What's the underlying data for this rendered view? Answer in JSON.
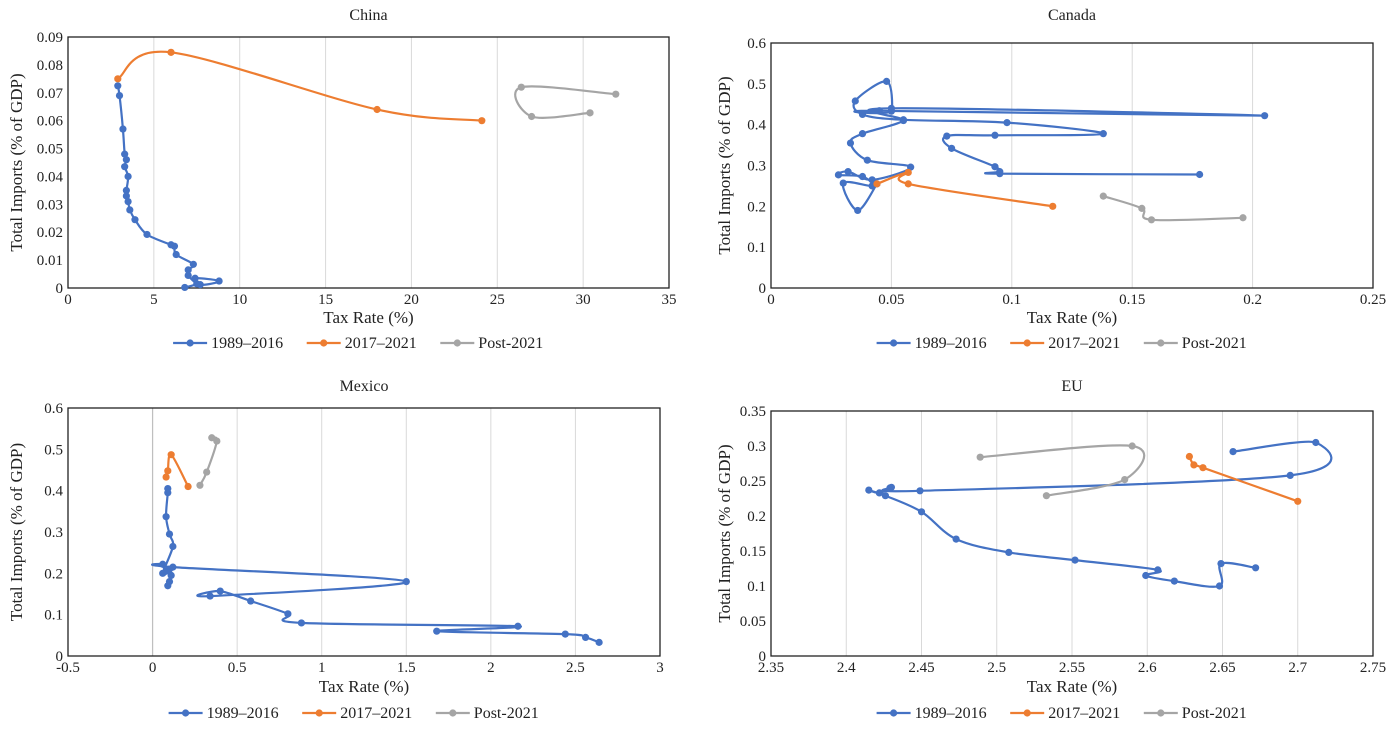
{
  "chart_data": [
    {
      "type": "line",
      "title": "China",
      "xlabel": "Tax Rate (%)",
      "ylabel": "Total Imports (% of GDP)",
      "xlim": [
        0,
        35
      ],
      "ylim": [
        0,
        0.09
      ],
      "xticks": [
        "0",
        "5",
        "10",
        "15",
        "20",
        "25",
        "30",
        "35"
      ],
      "yticks": [
        "0",
        "0.01",
        "0.02",
        "0.03",
        "0.04",
        "0.05",
        "0.06",
        "0.07",
        "0.08",
        "0.09"
      ],
      "grid": "vertical",
      "legend": "bottom",
      "series": [
        {
          "name": "1989–2016",
          "color": "#4472c4",
          "points": [
            [
              6.8,
              0.0002
            ],
            [
              7.5,
              0.0015
            ],
            [
              7.4,
              0.0035
            ],
            [
              8.8,
              0.0025
            ],
            [
              7.7,
              0.0012
            ],
            [
              7.0,
              0.0045
            ],
            [
              7.0,
              0.0065
            ],
            [
              7.3,
              0.0085
            ],
            [
              6.3,
              0.012
            ],
            [
              6.2,
              0.015
            ],
            [
              6.0,
              0.0155
            ],
            [
              4.6,
              0.0192
            ],
            [
              3.9,
              0.0245
            ],
            [
              3.6,
              0.028
            ],
            [
              3.5,
              0.031
            ],
            [
              3.4,
              0.033
            ],
            [
              3.4,
              0.035
            ],
            [
              3.5,
              0.04
            ],
            [
              3.3,
              0.0435
            ],
            [
              3.4,
              0.046
            ],
            [
              3.3,
              0.048
            ],
            [
              3.2,
              0.057
            ],
            [
              3.0,
              0.069
            ],
            [
              2.9,
              0.0725
            ]
          ]
        },
        {
          "name": "2017–2021",
          "color": "#ed7d31",
          "points": [
            [
              2.9,
              0.075
            ],
            [
              6.0,
              0.0845
            ],
            [
              18.0,
              0.064
            ],
            [
              24.1,
              0.06
            ]
          ]
        },
        {
          "name": "Post-2021",
          "color": "#a5a5a5",
          "points": [
            [
              30.4,
              0.0628
            ],
            [
              27.0,
              0.0615
            ],
            [
              26.4,
              0.072
            ],
            [
              31.9,
              0.0695
            ]
          ]
        }
      ]
    },
    {
      "type": "line",
      "title": "Canada",
      "xlabel": "Tax Rate (%)",
      "ylabel": "Total Imports (% of GDP)",
      "xlim": [
        0,
        0.25
      ],
      "ylim": [
        0,
        0.6
      ],
      "xticks": [
        "0",
        "0.05",
        "0.1",
        "0.15",
        "0.2",
        "0.25"
      ],
      "yticks": [
        "0",
        "0.1",
        "0.2",
        "0.3",
        "0.4",
        "0.5",
        "0.6"
      ],
      "grid": "vertical",
      "legend": "bottom",
      "series": [
        {
          "name": "1989–2016",
          "color": "#4472c4",
          "points": [
            [
              0.178,
              0.278
            ],
            [
              0.095,
              0.28
            ],
            [
              0.095,
              0.285
            ],
            [
              0.093,
              0.297
            ],
            [
              0.075,
              0.342
            ],
            [
              0.073,
              0.372
            ],
            [
              0.093,
              0.374
            ],
            [
              0.138,
              0.378
            ],
            [
              0.098,
              0.405
            ],
            [
              0.055,
              0.412
            ],
            [
              0.038,
              0.425
            ],
            [
              0.035,
              0.458
            ],
            [
              0.048,
              0.506
            ],
            [
              0.05,
              0.433
            ],
            [
              0.045,
              0.434
            ],
            [
              0.205,
              0.422
            ],
            [
              0.05,
              0.44
            ],
            [
              0.055,
              0.41
            ],
            [
              0.038,
              0.378
            ],
            [
              0.033,
              0.355
            ],
            [
              0.04,
              0.313
            ],
            [
              0.058,
              0.296
            ],
            [
              0.042,
              0.265
            ],
            [
              0.032,
              0.285
            ],
            [
              0.028,
              0.277
            ],
            [
              0.038,
              0.273
            ],
            [
              0.042,
              0.25
            ],
            [
              0.03,
              0.257
            ],
            [
              0.036,
              0.19
            ],
            [
              0.044,
              0.255
            ]
          ]
        },
        {
          "name": "2017–2021",
          "color": "#ed7d31",
          "points": [
            [
              0.044,
              0.255
            ],
            [
              0.057,
              0.283
            ],
            [
              0.057,
              0.255
            ],
            [
              0.117,
              0.2
            ]
          ]
        },
        {
          "name": "Post-2021",
          "color": "#a5a5a5",
          "points": [
            [
              0.138,
              0.225
            ],
            [
              0.154,
              0.195
            ],
            [
              0.158,
              0.167
            ],
            [
              0.196,
              0.172
            ]
          ]
        }
      ]
    },
    {
      "type": "line",
      "title": "Mexico",
      "xlabel": "Tax Rate (%)",
      "ylabel": "Total Imports (% of GDP)",
      "xlim": [
        -0.5,
        3
      ],
      "ylim": [
        0,
        0.6
      ],
      "xticks": [
        "-0.5",
        "0",
        "0.5",
        "1",
        "1.5",
        "2",
        "2.5",
        "3"
      ],
      "yticks": [
        "0",
        "0.1",
        "0.2",
        "0.3",
        "0.4",
        "0.5",
        "0.6"
      ],
      "grid": "vertical",
      "legend": "bottom",
      "series": [
        {
          "name": "1989–2016",
          "color": "#4472c4",
          "points": [
            [
              2.64,
              0.033
            ],
            [
              2.56,
              0.045
            ],
            [
              2.44,
              0.053
            ],
            [
              1.68,
              0.06
            ],
            [
              2.16,
              0.072
            ],
            [
              0.88,
              0.08
            ],
            [
              0.8,
              0.102
            ],
            [
              0.58,
              0.133
            ],
            [
              0.4,
              0.157
            ],
            [
              0.34,
              0.145
            ],
            [
              1.5,
              0.18
            ],
            [
              0.12,
              0.215
            ],
            [
              0.06,
              0.222
            ],
            [
              0.08,
              0.205
            ],
            [
              0.11,
              0.195
            ],
            [
              0.09,
              0.17
            ],
            [
              0.1,
              0.18
            ],
            [
              0.1,
              0.21
            ],
            [
              0.06,
              0.2
            ],
            [
              0.12,
              0.265
            ],
            [
              0.1,
              0.295
            ],
            [
              0.08,
              0.337
            ],
            [
              0.09,
              0.395
            ],
            [
              0.09,
              0.405
            ]
          ]
        },
        {
          "name": "2017–2021",
          "color": "#ed7d31",
          "points": [
            [
              0.08,
              0.433
            ],
            [
              0.09,
              0.448
            ],
            [
              0.11,
              0.487
            ],
            [
              0.21,
              0.41
            ]
          ]
        },
        {
          "name": "Post-2021",
          "color": "#a5a5a5",
          "points": [
            [
              0.28,
              0.413
            ],
            [
              0.32,
              0.445
            ],
            [
              0.38,
              0.52
            ],
            [
              0.35,
              0.528
            ]
          ]
        }
      ]
    },
    {
      "type": "line",
      "title": "EU",
      "xlabel": "Tax Rate (%)",
      "ylabel": "Total Imports (% of GDP)",
      "xlim": [
        2.35,
        2.75
      ],
      "ylim": [
        0,
        0.35
      ],
      "xticks": [
        "2.35",
        "2.4",
        "2.45",
        "2.5",
        "2.55",
        "2.6",
        "2.65",
        "2.7",
        "2.75"
      ],
      "yticks": [
        "0",
        "0.05",
        "0.1",
        "0.15",
        "0.2",
        "0.25",
        "0.3",
        "0.35"
      ],
      "grid": "vertical",
      "legend": "bottom",
      "series": [
        {
          "name": "1989–2016",
          "color": "#4472c4",
          "points": [
            [
              2.672,
              0.126
            ],
            [
              2.649,
              0.132
            ],
            [
              2.648,
              0.1
            ],
            [
              2.618,
              0.107
            ],
            [
              2.599,
              0.115
            ],
            [
              2.607,
              0.123
            ],
            [
              2.552,
              0.137
            ],
            [
              2.508,
              0.148
            ],
            [
              2.473,
              0.167
            ],
            [
              2.45,
              0.206
            ],
            [
              2.426,
              0.229
            ],
            [
              2.415,
              0.237
            ],
            [
              2.422,
              0.233
            ],
            [
              2.429,
              0.24
            ],
            [
              2.43,
              0.241
            ],
            [
              2.449,
              0.236
            ],
            [
              2.695,
              0.258
            ],
            [
              2.712,
              0.305
            ],
            [
              2.657,
              0.292
            ]
          ]
        },
        {
          "name": "2017–2021",
          "color": "#ed7d31",
          "points": [
            [
              2.628,
              0.285
            ],
            [
              2.631,
              0.273
            ],
            [
              2.637,
              0.269
            ],
            [
              2.7,
              0.221
            ]
          ]
        },
        {
          "name": "Post-2021",
          "color": "#a5a5a5",
          "points": [
            [
              2.489,
              0.284
            ],
            [
              2.59,
              0.3
            ],
            [
              2.585,
              0.252
            ],
            [
              2.533,
              0.229
            ]
          ]
        }
      ]
    }
  ]
}
